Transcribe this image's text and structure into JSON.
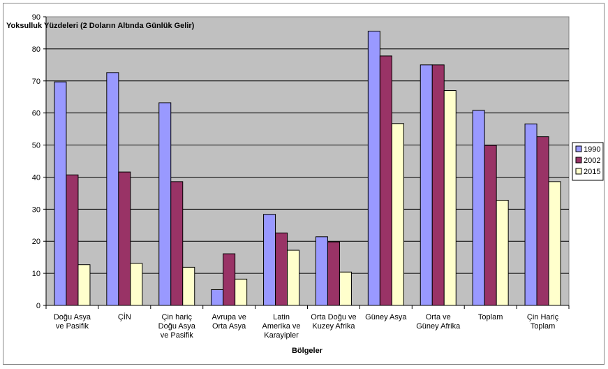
{
  "chart_data": {
    "type": "bar",
    "ylabel": "Yoksulluk Yüzdeleri (2 Doların Altında Günlük Gelir)",
    "xlabel": "Bölgeler",
    "ylim": [
      0,
      90
    ],
    "yticks": [
      0,
      10,
      20,
      30,
      40,
      50,
      60,
      70,
      80,
      90
    ],
    "grid": true,
    "legend_position": "right",
    "categories": [
      [
        "Doğu Asya",
        "ve Pasifik"
      ],
      [
        "ÇİN"
      ],
      [
        "Çin hariç",
        "Doğu Asya",
        "ve Pasifik"
      ],
      [
        "Avrupa ve",
        "Orta Asya"
      ],
      [
        "Latin",
        "Amerika ve",
        "Karayipler"
      ],
      [
        "Orta Doğu ve",
        "Kuzey Afrika"
      ],
      [
        "Güney Asya"
      ],
      [
        "Orta ve",
        "Güney Afrika"
      ],
      [
        "Toplam"
      ],
      [
        "Çin Hariç",
        "Toplam"
      ]
    ],
    "series": [
      {
        "name": "1990",
        "color": "#9999ff",
        "values": [
          69.7,
          72.6,
          63.2,
          4.9,
          28.4,
          21.4,
          85.5,
          75.0,
          60.8,
          56.6
        ]
      },
      {
        "name": "2002",
        "color": "#993366",
        "values": [
          40.7,
          41.6,
          38.6,
          16.1,
          22.6,
          19.8,
          77.8,
          75.0,
          49.9,
          52.6
        ]
      },
      {
        "name": "2015",
        "color": "#ffffcc",
        "values": [
          12.7,
          13.1,
          11.9,
          8.2,
          17.2,
          10.4,
          56.7,
          67.0,
          32.8,
          38.6
        ]
      }
    ]
  }
}
